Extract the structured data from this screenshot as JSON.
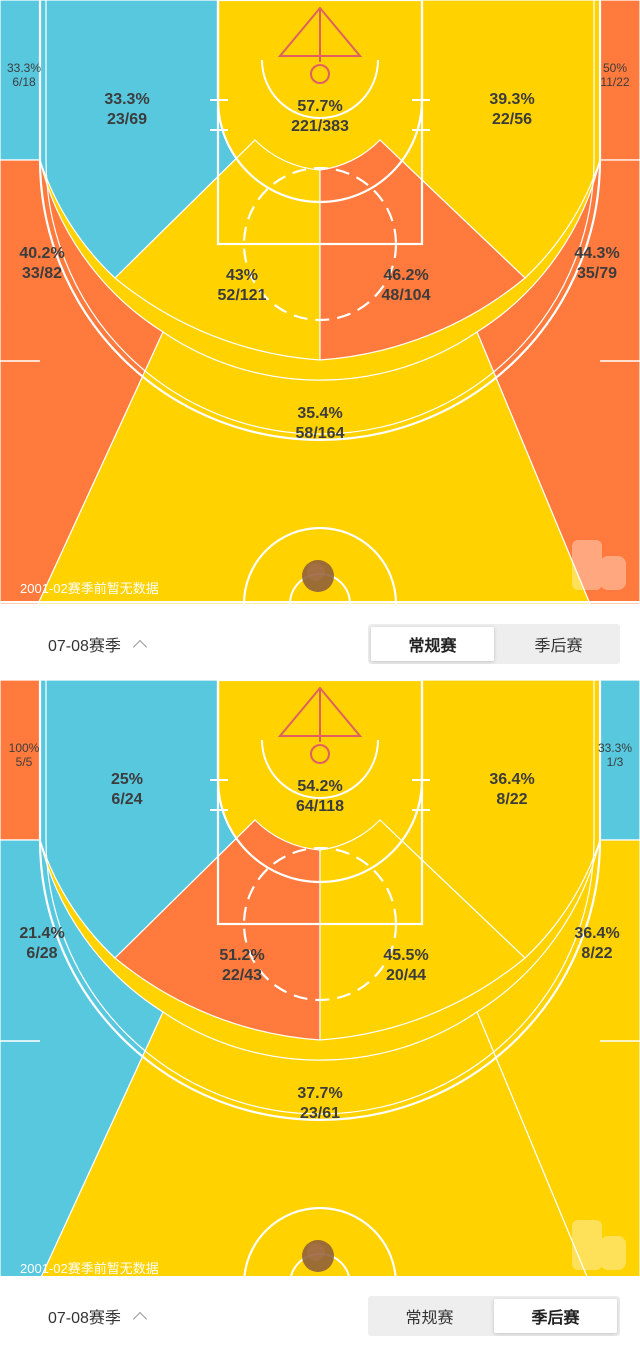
{
  "colors": {
    "hot": "#ff7a3c",
    "avg": "#ffd200",
    "cold": "#58c8df",
    "line": "#ffffff"
  },
  "panels": [
    {
      "note": "2001-02赛季前暂无数据",
      "zones": {
        "corner_left": {
          "pct": "33.3%",
          "made_att": "6/18",
          "heat": "cold"
        },
        "wing_left": {
          "pct": "40.2%",
          "made_att": "33/82",
          "heat": "hot"
        },
        "mid_left_baseline": {
          "pct": "33.3%",
          "made_att": "23/69",
          "heat": "cold"
        },
        "paint": {
          "pct": "57.7%",
          "made_att": "221/383",
          "heat": "avg"
        },
        "mid_right_baseline": {
          "pct": "39.3%",
          "made_att": "22/56",
          "heat": "avg"
        },
        "corner_right": {
          "pct": "50%",
          "made_att": "11/22",
          "heat": "hot"
        },
        "wing_right": {
          "pct": "44.3%",
          "made_att": "35/79",
          "heat": "hot"
        },
        "elbow_left": {
          "pct": "43%",
          "made_att": "52/121",
          "heat": "avg"
        },
        "elbow_right": {
          "pct": "46.2%",
          "made_att": "48/104",
          "heat": "hot"
        },
        "top_three": {
          "pct": "35.4%",
          "made_att": "58/164",
          "heat": "avg"
        }
      },
      "controls": {
        "season": "07-08赛季",
        "tabs": [
          "常规赛",
          "季后赛"
        ],
        "active_tab": 0
      }
    },
    {
      "note": "2001-02赛季前暂无数据",
      "zones": {
        "corner_left": {
          "pct": "100%",
          "made_att": "5/5",
          "heat": "hot"
        },
        "wing_left": {
          "pct": "21.4%",
          "made_att": "6/28",
          "heat": "cold"
        },
        "mid_left_baseline": {
          "pct": "25%",
          "made_att": "6/24",
          "heat": "cold"
        },
        "paint": {
          "pct": "54.2%",
          "made_att": "64/118",
          "heat": "avg"
        },
        "mid_right_baseline": {
          "pct": "36.4%",
          "made_att": "8/22",
          "heat": "avg"
        },
        "corner_right": {
          "pct": "33.3%",
          "made_att": "1/3",
          "heat": "cold"
        },
        "wing_right": {
          "pct": "36.4%",
          "made_att": "8/22",
          "heat": "avg"
        },
        "elbow_left": {
          "pct": "51.2%",
          "made_att": "22/43",
          "heat": "hot"
        },
        "elbow_right": {
          "pct": "45.5%",
          "made_att": "20/44",
          "heat": "avg"
        },
        "top_three": {
          "pct": "37.7%",
          "made_att": "23/61",
          "heat": "avg"
        }
      },
      "controls": {
        "season": "07-08赛季",
        "tabs": [
          "常规赛",
          "季后赛"
        ],
        "active_tab": 1
      }
    }
  ]
}
